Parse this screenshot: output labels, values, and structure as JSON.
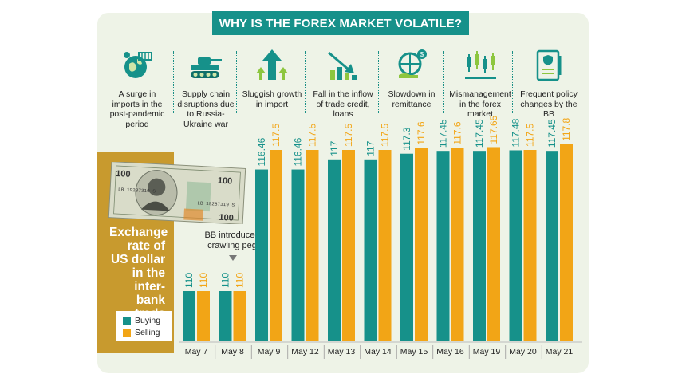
{
  "title": "WHY IS THE FOREX MARKET VOLATILE?",
  "factors": [
    {
      "icon": "globe-container-icon",
      "text": "A surge in imports in the post-pandemic period"
    },
    {
      "icon": "tank-icon",
      "text": "Supply chain disruptions due to Russia-Ukraine war"
    },
    {
      "icon": "growth-arrows-icon",
      "text": "Sluggish growth in import"
    },
    {
      "icon": "falling-chart-icon",
      "text": "Fall in the inflow of trade credit, loans"
    },
    {
      "icon": "globe-hand-dollar-icon",
      "text": "Slowdown in remittance"
    },
    {
      "icon": "candlestick-icon",
      "text": "Mismanagement in the forex market"
    },
    {
      "icon": "policy-document-icon",
      "text": "Frequent policy changes by the BB"
    }
  ],
  "side_note": "Exchange rate of US dollar in the inter-bank trade",
  "banknote": {
    "serial": "LB 19287319 S",
    "denomination": "100"
  },
  "annotation": "BB introduced crawling peg",
  "colors": {
    "buying": "#16918a",
    "selling": "#f2a516",
    "panel": "#eef3e7",
    "gold": "#c89a2e",
    "title_bg": "#16918a"
  },
  "chart_data": {
    "type": "bar",
    "categories": [
      "May 7",
      "May 8",
      "May 9",
      "May 12",
      "May 13",
      "May 14",
      "May 15",
      "May 16",
      "May 19",
      "May 20",
      "May 21"
    ],
    "series": [
      {
        "name": "Buying",
        "values": [
          110,
          110,
          116.46,
          116.46,
          117,
          117,
          117.3,
          117.45,
          117.45,
          117.48,
          117.45
        ]
      },
      {
        "name": "Selling",
        "values": [
          110,
          110,
          117.5,
          117.5,
          117.5,
          117.5,
          117.6,
          117.6,
          117.65,
          117.5,
          117.8
        ]
      }
    ],
    "labels": [
      [
        "110",
        "110",
        "116.46",
        "116.46",
        "117",
        "117",
        "117.3",
        "117.45",
        "117.45",
        "117.48",
        "117.45"
      ],
      [
        "110",
        "110",
        "117.5",
        "117.5",
        "117.5",
        "117.5",
        "117.6",
        "117.6",
        "117.65",
        "117.5",
        "117.8"
      ]
    ],
    "legend": [
      "Buying",
      "Selling"
    ],
    "legend_position": "bottom-left",
    "grid": false
  }
}
